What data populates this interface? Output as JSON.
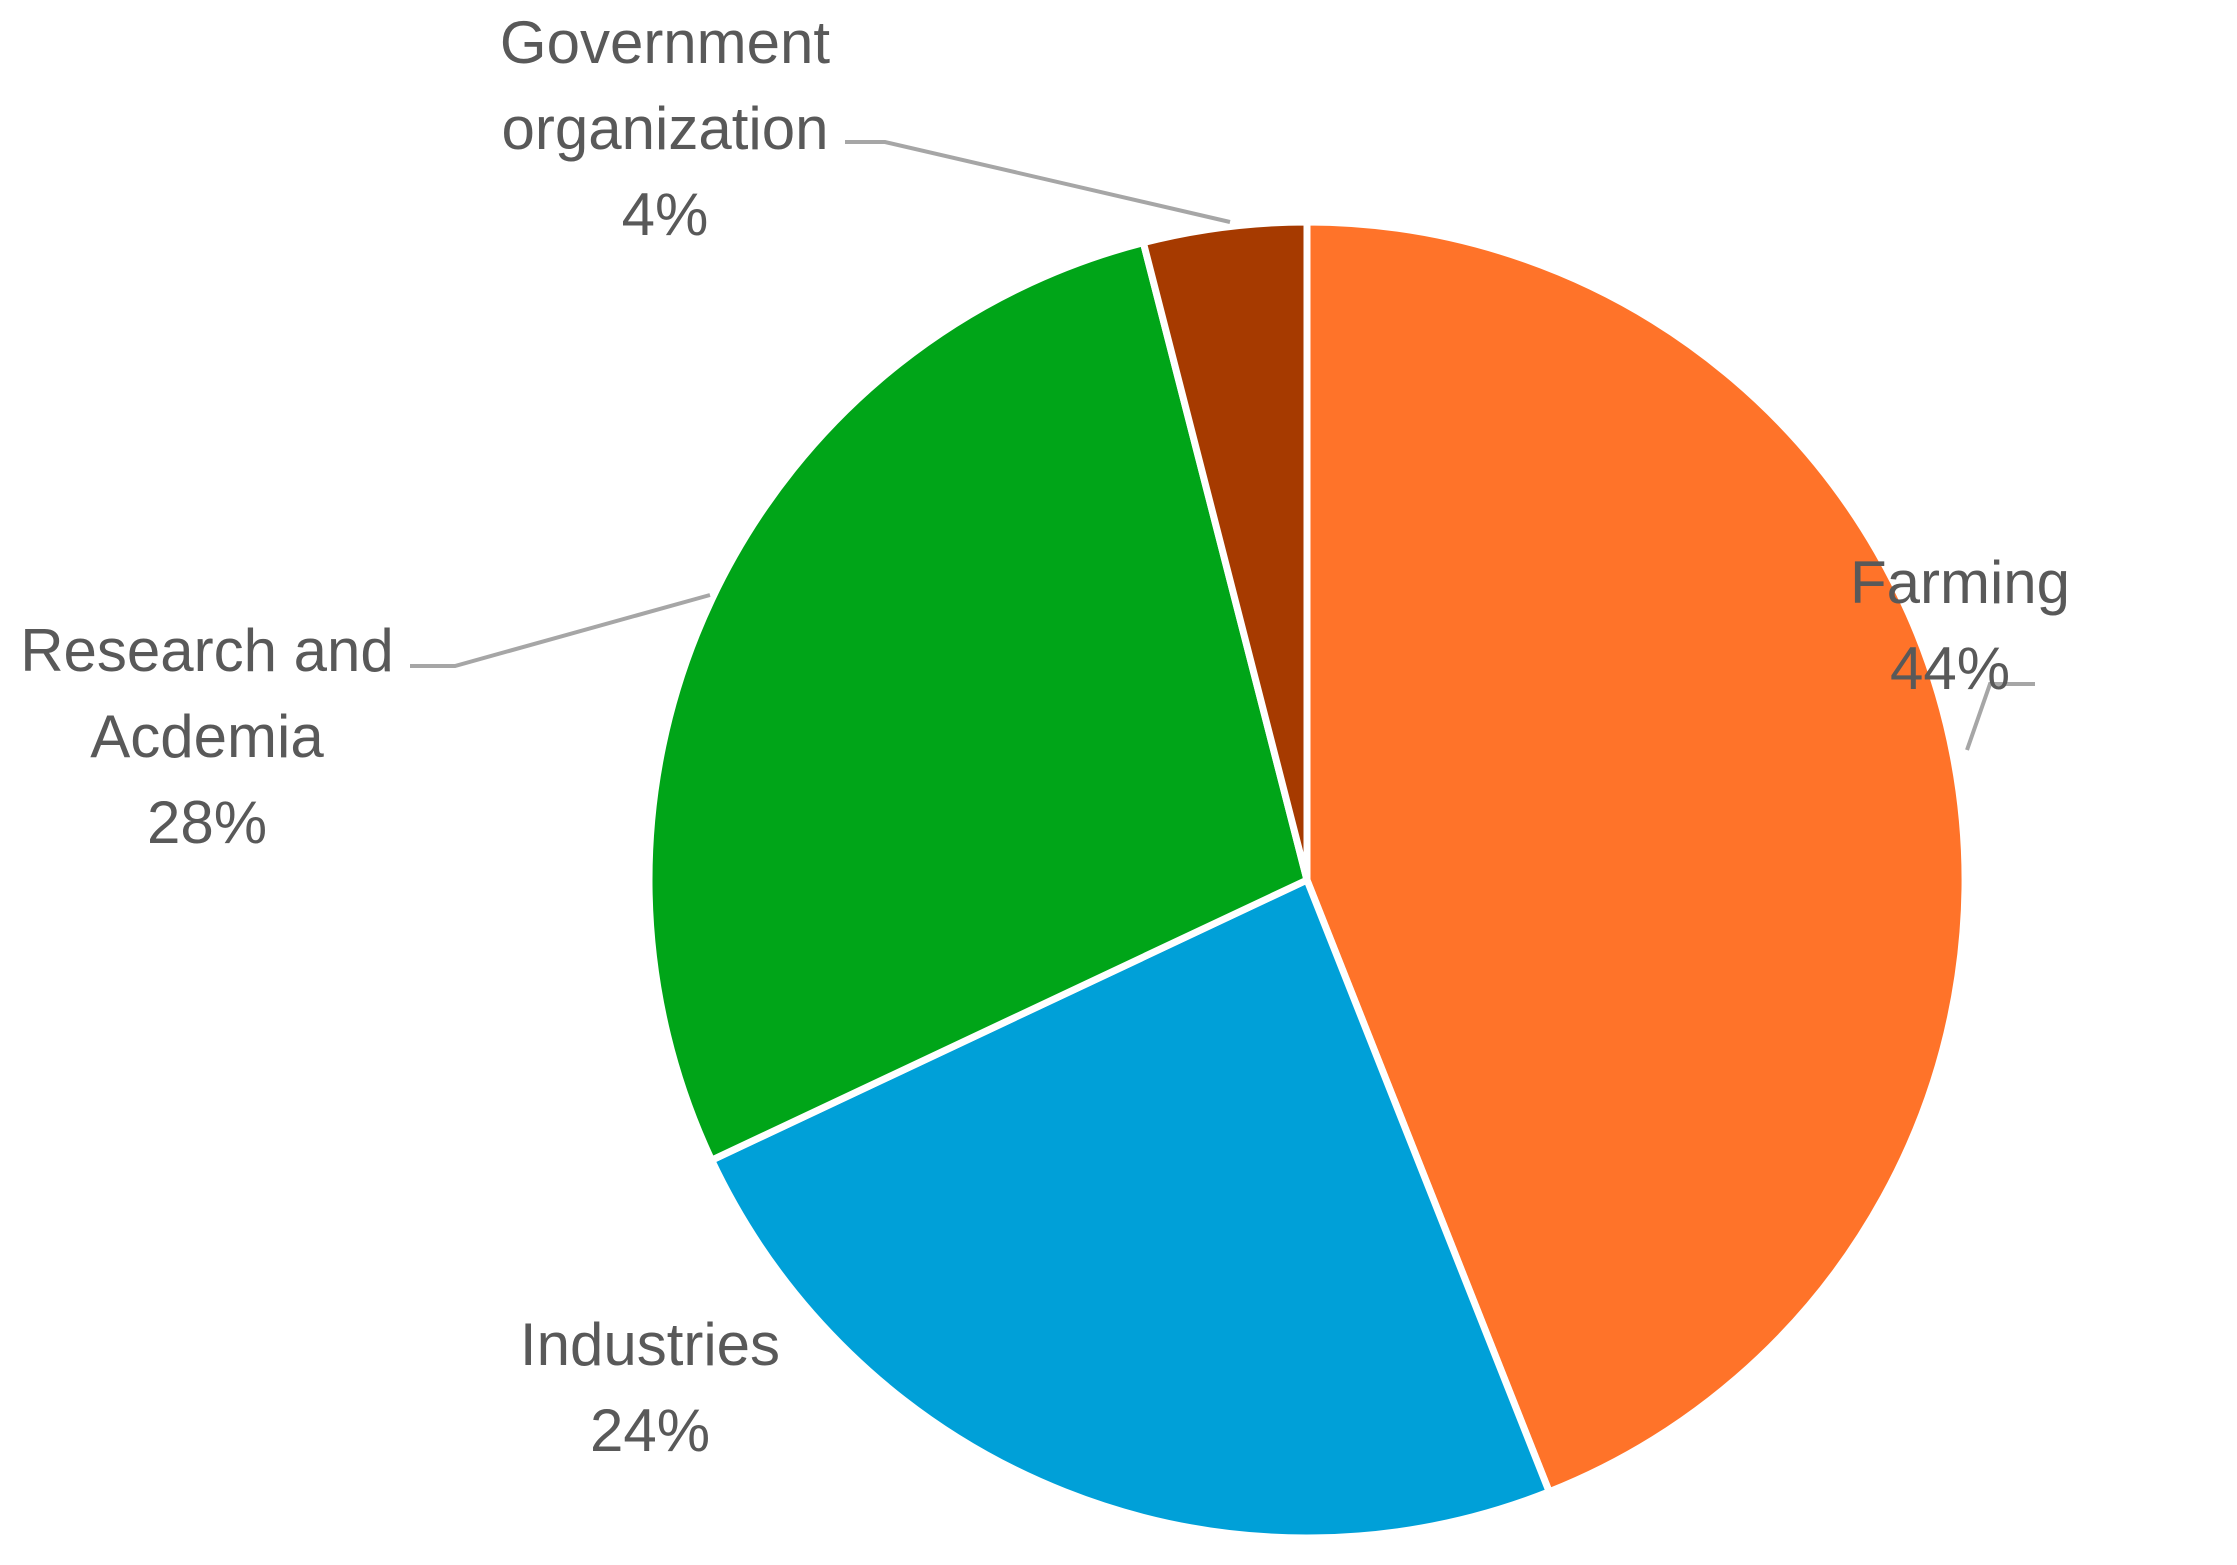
{
  "chart_data": {
    "type": "pie",
    "title": "",
    "start_angle_deg": 0,
    "direction": "clockwise",
    "slices": [
      {
        "name": "Farming",
        "value": 44,
        "label_lines": [
          "Farming"
        ],
        "percent_label": "44%",
        "color": "#FF7329"
      },
      {
        "name": "Industries",
        "value": 24,
        "label_lines": [
          "Industries"
        ],
        "percent_label": "24%",
        "color": "#00A0D8"
      },
      {
        "name": "Research and Acdemia",
        "value": 28,
        "label_lines": [
          "Research and",
          "Acdemia"
        ],
        "percent_label": "28%",
        "color": "#00A518"
      },
      {
        "name": "Government organization",
        "value": 4,
        "label_lines": [
          "Government",
          "organization"
        ],
        "percent_label": "4%",
        "color": "#A63A00"
      }
    ],
    "slice_border_color": "#FFFFFF",
    "leader_line_color": "#A6A6A6",
    "label_color": "#595959",
    "legend": "none"
  }
}
